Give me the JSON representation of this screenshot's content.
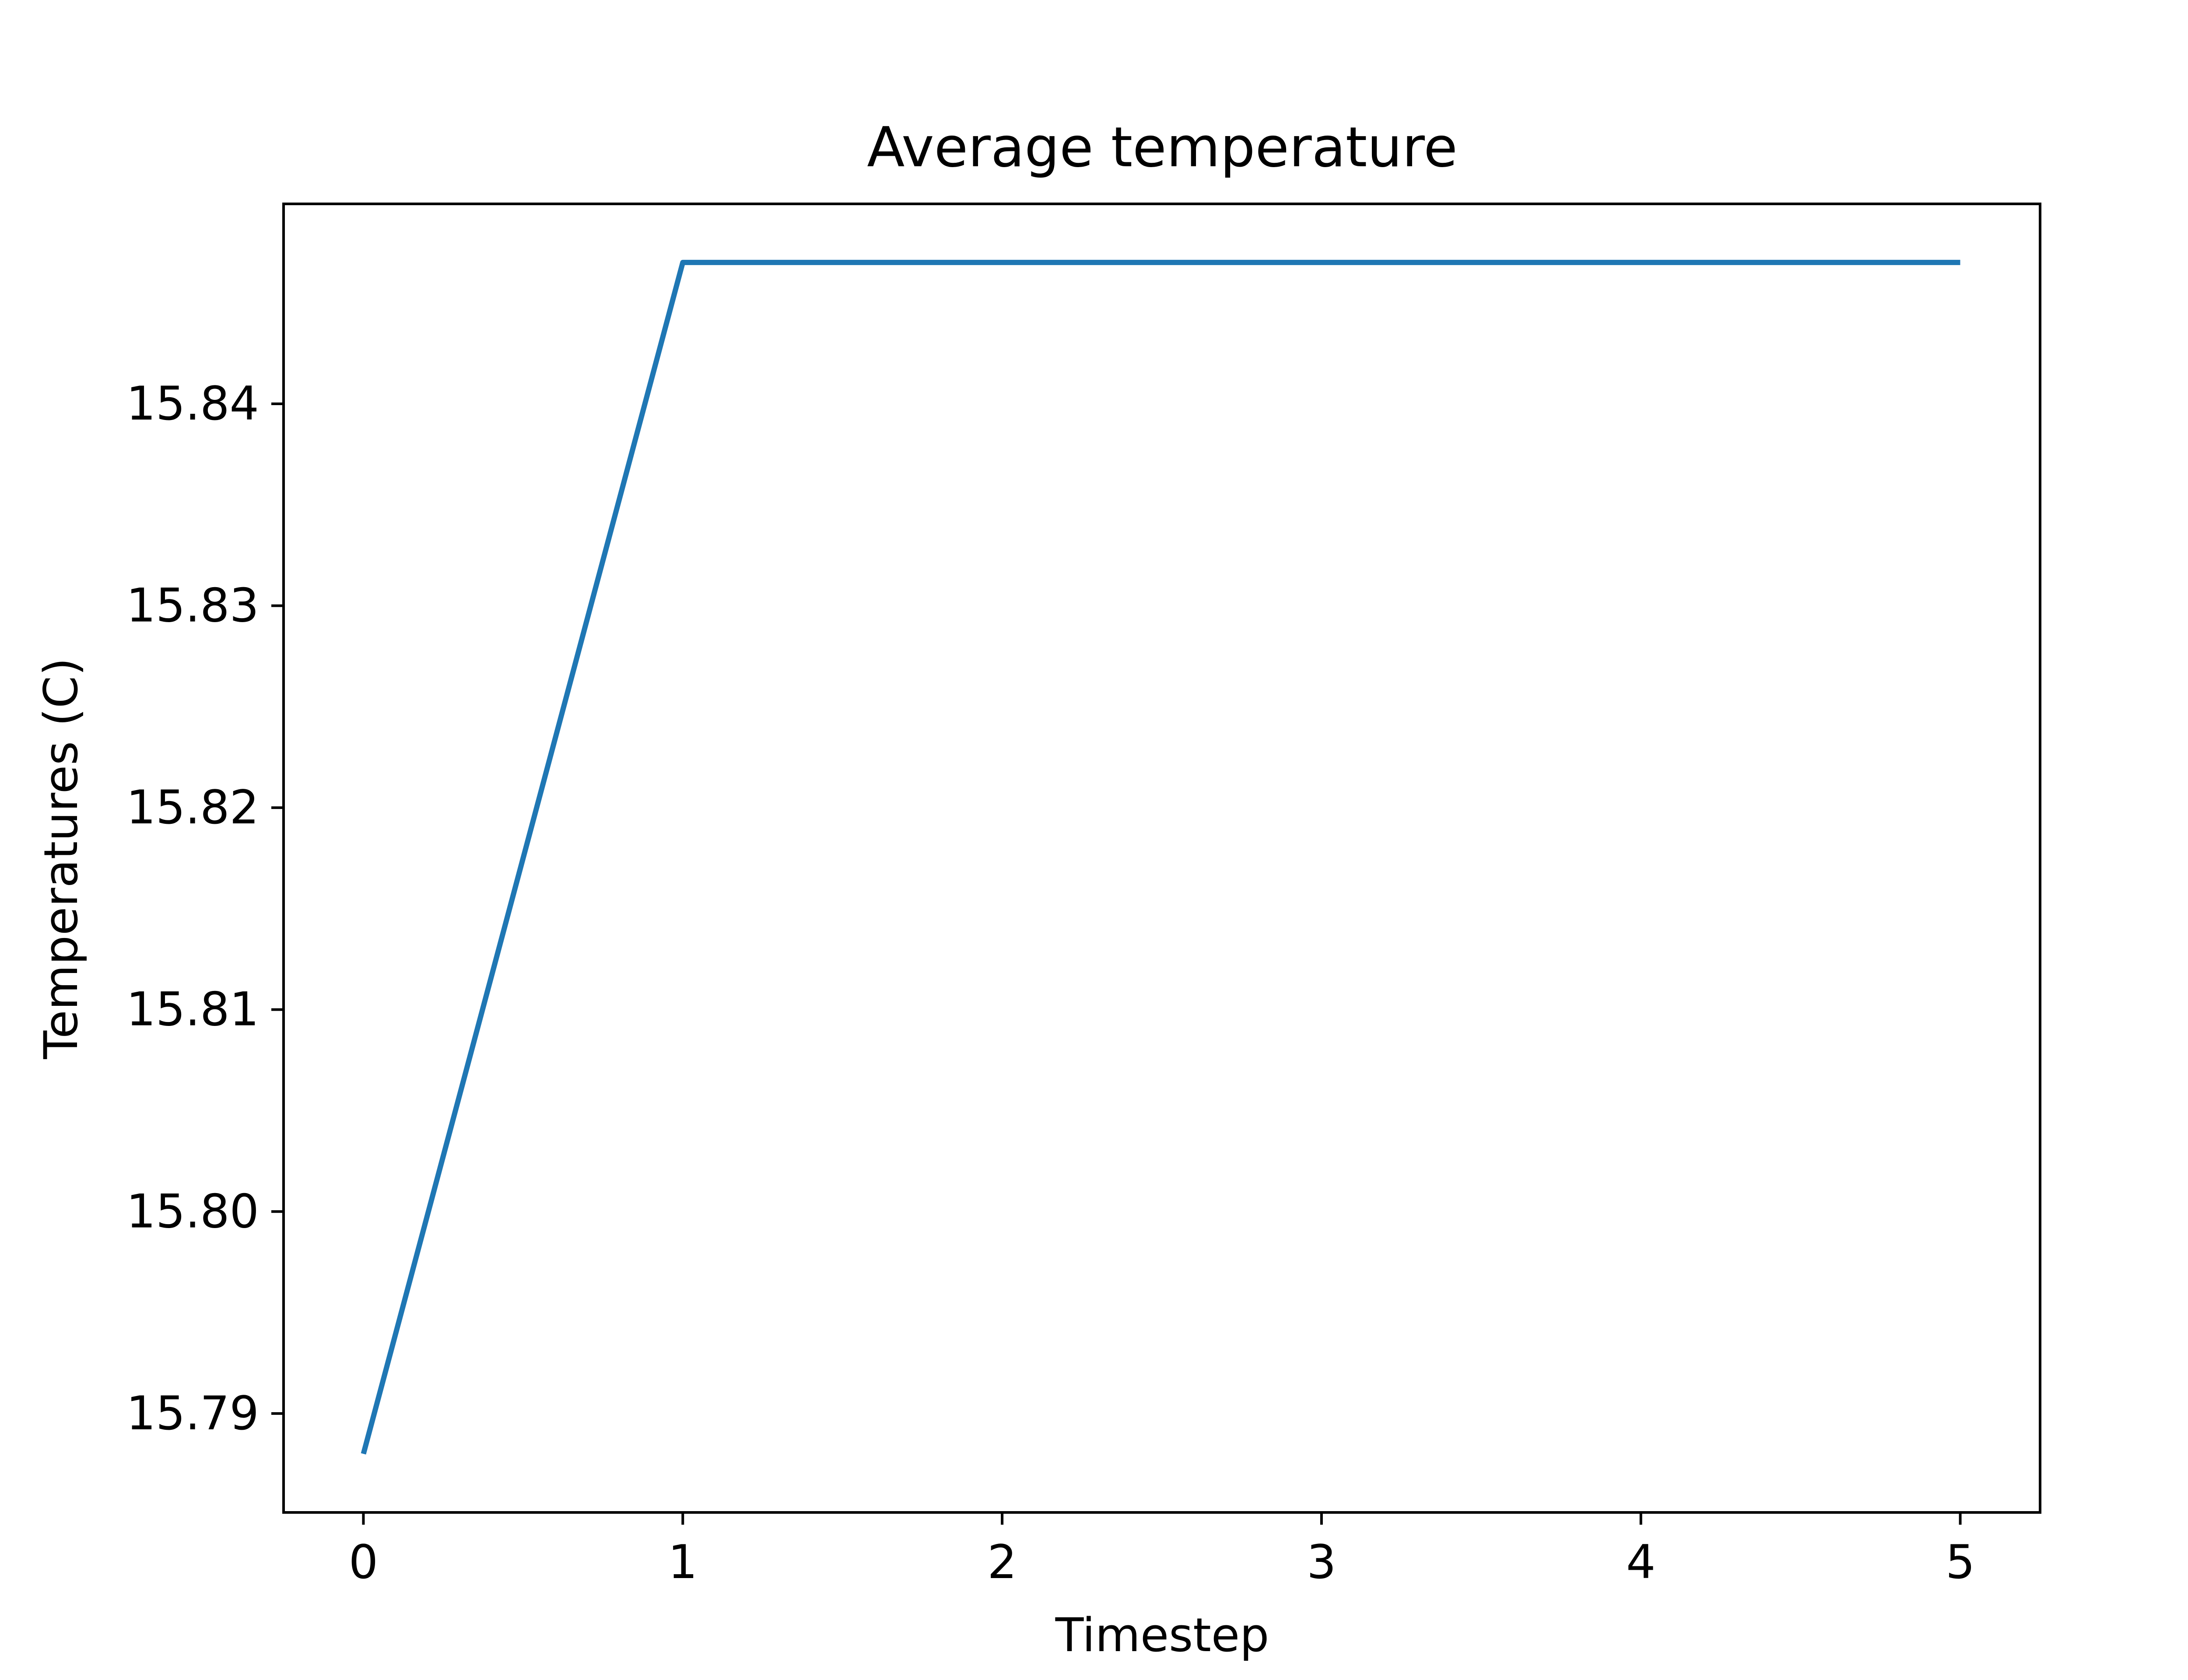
{
  "chart_data": {
    "type": "line",
    "title": "Average temperature",
    "xlabel": "Timestep",
    "ylabel": "Temperatures (C)",
    "x": [
      0,
      1,
      2,
      3,
      4,
      5
    ],
    "series": [
      {
        "values": [
          15.788,
          15.847,
          15.847,
          15.847,
          15.847,
          15.847
        ],
        "color": "#1f77b4"
      }
    ],
    "xlim": [
      -0.25,
      5.25
    ],
    "ylim": [
      15.7851,
      15.8499
    ],
    "xticks": [
      0,
      1,
      2,
      3,
      4,
      5
    ],
    "xtick_labels": [
      "0",
      "1",
      "2",
      "3",
      "4",
      "5"
    ],
    "yticks": [
      15.79,
      15.8,
      15.81,
      15.82,
      15.83,
      15.84
    ],
    "ytick_labels": [
      "15.79",
      "15.80",
      "15.81",
      "15.82",
      "15.83",
      "15.84"
    ],
    "grid": false,
    "legend": false
  }
}
